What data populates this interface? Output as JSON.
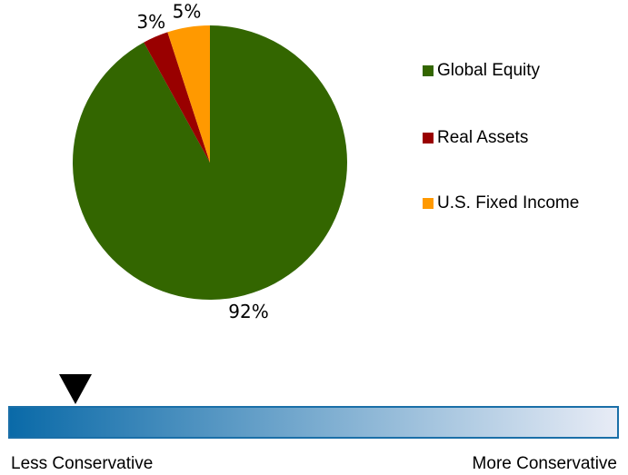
{
  "chart_data": {
    "type": "pie",
    "slices": [
      {
        "label": "Global Equity",
        "value": 92,
        "value_label": "92%",
        "color": "#336600"
      },
      {
        "label": "Real Assets",
        "value": 3,
        "value_label": "3%",
        "color": "#990000"
      },
      {
        "label": "U.S. Fixed Income",
        "value": 5,
        "value_label": "5%",
        "color": "#ff9900"
      }
    ],
    "legend_position": "right"
  },
  "risk_scale": {
    "left_label": "Less Conservative",
    "right_label": "More Conservative",
    "gradient_start_color": "#0a6aa8",
    "gradient_end_color": "#e8ecf6",
    "border_color": "#1a6fa8",
    "marker_color": "#000000",
    "marker_position_fraction": 0.11
  }
}
